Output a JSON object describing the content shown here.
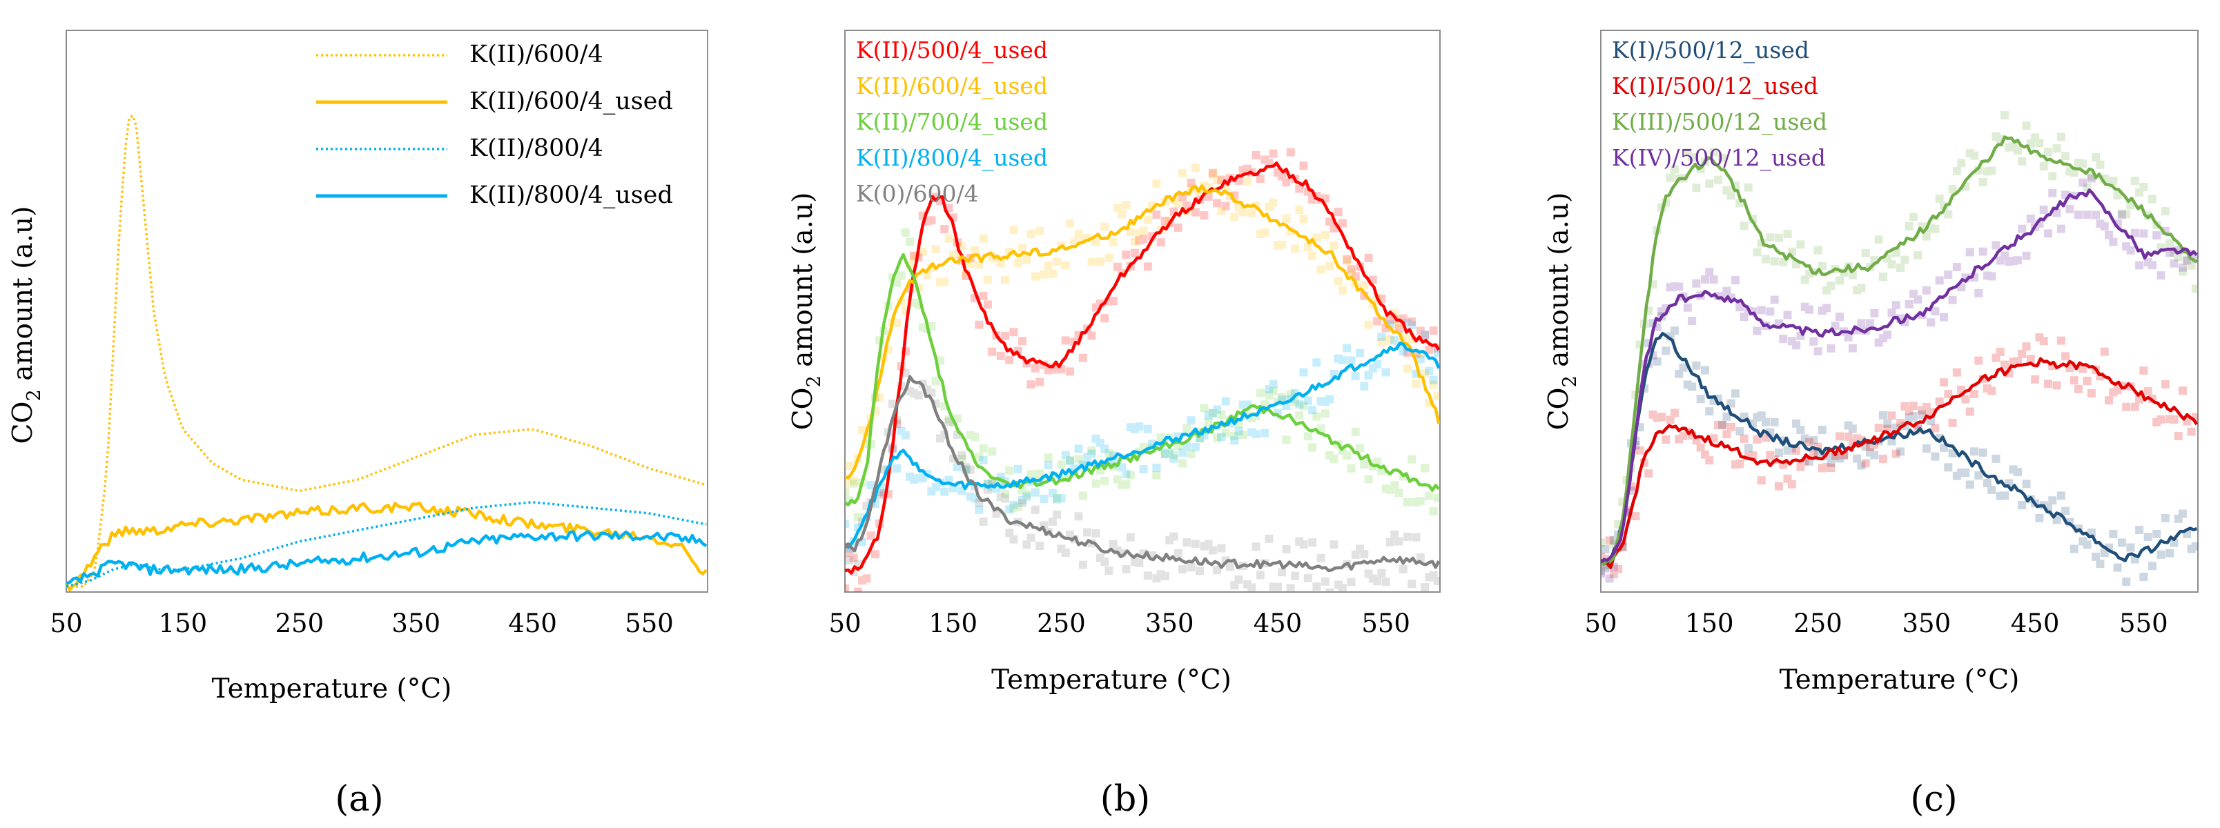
{
  "chart_data": [
    {
      "type": "line",
      "panel_label": "(a)",
      "xlabel": "Temperature (°C)",
      "ylabel": "CO2 amount (a.u)",
      "ylabel_parts": {
        "pre": "CO",
        "sub": "2",
        "post": " amount (a.u)"
      },
      "xlim": [
        50,
        600
      ],
      "ylim": [
        0,
        1
      ],
      "x_ticks": [
        50,
        150,
        250,
        350,
        450,
        550
      ],
      "grid": false,
      "legend_position": "top-right",
      "series": [
        {
          "name": "K(II)/600/4",
          "color": "#FFC000",
          "style": "dotted",
          "x": [
            50,
            65,
            75,
            85,
            95,
            100,
            105,
            110,
            115,
            125,
            135,
            150,
            175,
            200,
            250,
            300,
            350,
            400,
            450,
            500,
            550,
            600
          ],
          "y": [
            0.01,
            0.01,
            0.04,
            0.22,
            0.62,
            0.78,
            0.86,
            0.83,
            0.72,
            0.5,
            0.38,
            0.29,
            0.23,
            0.2,
            0.18,
            0.2,
            0.24,
            0.28,
            0.29,
            0.26,
            0.22,
            0.19
          ]
        },
        {
          "name": "K(II)/600/4_used",
          "color": "#FFC000",
          "style": "solid",
          "x": [
            50,
            60,
            70,
            80,
            90,
            100,
            125,
            150,
            200,
            250,
            300,
            350,
            400,
            450,
            500,
            550,
            580,
            590,
            600
          ],
          "y": [
            0.01,
            0.02,
            0.05,
            0.08,
            0.1,
            0.11,
            0.11,
            0.12,
            0.13,
            0.14,
            0.15,
            0.15,
            0.14,
            0.12,
            0.11,
            0.1,
            0.08,
            0.05,
            0.03
          ]
        },
        {
          "name": "K(II)/800/4",
          "color": "#00B0F0",
          "style": "dotted",
          "x": [
            50,
            70,
            90,
            110,
            130,
            150,
            200,
            250,
            300,
            350,
            400,
            450,
            500,
            550,
            600
          ],
          "y": [
            0.01,
            0.02,
            0.04,
            0.05,
            0.04,
            0.04,
            0.06,
            0.09,
            0.11,
            0.13,
            0.15,
            0.16,
            0.15,
            0.14,
            0.12
          ]
        },
        {
          "name": "K(II)/800/4_used",
          "color": "#00B0F0",
          "style": "solid",
          "x": [
            50,
            60,
            70,
            80,
            90,
            100,
            120,
            150,
            200,
            250,
            300,
            350,
            400,
            450,
            500,
            550,
            600
          ],
          "y": [
            0.01,
            0.02,
            0.03,
            0.04,
            0.05,
            0.05,
            0.04,
            0.04,
            0.04,
            0.05,
            0.06,
            0.07,
            0.09,
            0.1,
            0.1,
            0.1,
            0.09
          ]
        }
      ]
    },
    {
      "type": "line",
      "panel_label": "(b)",
      "xlabel": "Temperature (°C)",
      "ylabel": "CO2 amount (a.u)",
      "ylabel_parts": {
        "pre": "CO",
        "sub": "2",
        "post": " amount (a.u)"
      },
      "xlim": [
        50,
        600
      ],
      "ylim": [
        0,
        1
      ],
      "x_ticks": [
        50,
        150,
        250,
        350,
        450,
        550
      ],
      "grid": false,
      "legend_position": "top-left",
      "series": [
        {
          "name": "K(II)/500/4_used",
          "color": "#FF0000",
          "style": "solid",
          "x": [
            50,
            65,
            80,
            90,
            100,
            110,
            120,
            130,
            140,
            150,
            160,
            180,
            200,
            220,
            240,
            250,
            275,
            300,
            350,
            400,
            450,
            480,
            500,
            550,
            580,
            600
          ],
          "y": [
            0.04,
            0.04,
            0.1,
            0.2,
            0.36,
            0.52,
            0.64,
            0.7,
            0.7,
            0.65,
            0.58,
            0.49,
            0.43,
            0.41,
            0.4,
            0.41,
            0.47,
            0.55,
            0.66,
            0.73,
            0.76,
            0.72,
            0.67,
            0.5,
            0.45,
            0.43
          ]
        },
        {
          "name": "K(II)/600/4_used",
          "color": "#FFC000",
          "style": "solid",
          "x": [
            50,
            60,
            70,
            80,
            90,
            100,
            110,
            130,
            150,
            200,
            250,
            300,
            350,
            380,
            400,
            450,
            500,
            550,
            570,
            590,
            600
          ],
          "y": [
            0.2,
            0.22,
            0.28,
            0.36,
            0.45,
            0.52,
            0.55,
            0.58,
            0.59,
            0.6,
            0.61,
            0.64,
            0.7,
            0.72,
            0.71,
            0.66,
            0.6,
            0.48,
            0.44,
            0.35,
            0.3
          ]
        },
        {
          "name": "K(II)/700/4_used",
          "color": "#6CCF3C",
          "style": "solid",
          "x": [
            50,
            60,
            70,
            80,
            90,
            100,
            105,
            110,
            120,
            130,
            150,
            175,
            200,
            250,
            300,
            350,
            400,
            425,
            450,
            500,
            550,
            600
          ],
          "y": [
            0.16,
            0.16,
            0.22,
            0.4,
            0.52,
            0.59,
            0.6,
            0.58,
            0.52,
            0.44,
            0.3,
            0.22,
            0.19,
            0.2,
            0.23,
            0.26,
            0.3,
            0.33,
            0.32,
            0.27,
            0.22,
            0.18
          ]
        },
        {
          "name": "K(II)/800/4_used",
          "color": "#00B0F0",
          "style": "solid",
          "x": [
            50,
            60,
            70,
            80,
            90,
            100,
            110,
            120,
            130,
            150,
            200,
            250,
            300,
            350,
            400,
            450,
            500,
            550,
            560,
            580,
            600
          ],
          "y": [
            0.08,
            0.1,
            0.14,
            0.18,
            0.22,
            0.25,
            0.24,
            0.22,
            0.2,
            0.19,
            0.19,
            0.21,
            0.24,
            0.27,
            0.3,
            0.33,
            0.38,
            0.43,
            0.44,
            0.43,
            0.4
          ]
        },
        {
          "name": "K(0)/600/4",
          "color": "#808080",
          "style": "solid",
          "x": [
            50,
            60,
            70,
            80,
            90,
            100,
            110,
            120,
            130,
            150,
            175,
            200,
            250,
            300,
            350,
            400,
            450,
            500,
            550,
            600
          ],
          "y": [
            0.08,
            0.08,
            0.12,
            0.2,
            0.28,
            0.34,
            0.38,
            0.37,
            0.34,
            0.25,
            0.17,
            0.13,
            0.1,
            0.07,
            0.06,
            0.05,
            0.05,
            0.04,
            0.06,
            0.05
          ]
        }
      ]
    },
    {
      "type": "line",
      "panel_label": "(c)",
      "xlabel": "Temperature (°C)",
      "ylabel": "CO2 amount (a.u)",
      "ylabel_parts": {
        "pre": "CO",
        "sub": "2",
        "post": " amount (a.u)"
      },
      "xlim": [
        50,
        600
      ],
      "ylim": [
        0,
        1
      ],
      "x_ticks": [
        50,
        150,
        250,
        350,
        450,
        550
      ],
      "grid": false,
      "legend_position": "top-left",
      "series": [
        {
          "name": "K(I)/500/12_used",
          "color": "#1F4E79",
          "style": "solid",
          "x": [
            50,
            60,
            70,
            80,
            90,
            100,
            110,
            120,
            150,
            200,
            250,
            300,
            350,
            400,
            450,
            500,
            530,
            550,
            580,
            600
          ],
          "y": [
            0.05,
            0.06,
            0.12,
            0.25,
            0.38,
            0.45,
            0.46,
            0.43,
            0.35,
            0.28,
            0.25,
            0.27,
            0.29,
            0.22,
            0.16,
            0.1,
            0.06,
            0.07,
            0.1,
            0.11
          ]
        },
        {
          "name": "K(I)I/500/12_used",
          "color": "#E00000",
          "style": "solid",
          "x": [
            50,
            60,
            70,
            80,
            90,
            100,
            110,
            120,
            150,
            200,
            250,
            300,
            350,
            400,
            450,
            500,
            550,
            600
          ],
          "y": [
            0.05,
            0.05,
            0.08,
            0.16,
            0.24,
            0.28,
            0.29,
            0.29,
            0.27,
            0.23,
            0.24,
            0.27,
            0.31,
            0.38,
            0.41,
            0.4,
            0.35,
            0.3
          ]
        },
        {
          "name": "K(III)/500/12_used",
          "color": "#70AD47",
          "style": "solid",
          "x": [
            50,
            60,
            70,
            80,
            90,
            100,
            110,
            120,
            140,
            150,
            160,
            180,
            200,
            250,
            300,
            350,
            400,
            425,
            450,
            500,
            550,
            600
          ],
          "y": [
            0.05,
            0.05,
            0.12,
            0.3,
            0.48,
            0.62,
            0.7,
            0.73,
            0.76,
            0.77,
            0.76,
            0.7,
            0.62,
            0.57,
            0.58,
            0.65,
            0.76,
            0.81,
            0.78,
            0.75,
            0.68,
            0.58
          ]
        },
        {
          "name": "K(IV)/500/12_used",
          "color": "#7030A0",
          "style": "solid",
          "x": [
            50,
            60,
            70,
            80,
            90,
            100,
            110,
            120,
            150,
            175,
            200,
            250,
            300,
            350,
            400,
            450,
            480,
            500,
            520,
            550,
            580,
            600
          ],
          "y": [
            0.06,
            0.06,
            0.1,
            0.25,
            0.4,
            0.48,
            0.5,
            0.52,
            0.53,
            0.52,
            0.48,
            0.46,
            0.47,
            0.5,
            0.58,
            0.65,
            0.7,
            0.71,
            0.67,
            0.6,
            0.61,
            0.6
          ]
        }
      ]
    }
  ]
}
